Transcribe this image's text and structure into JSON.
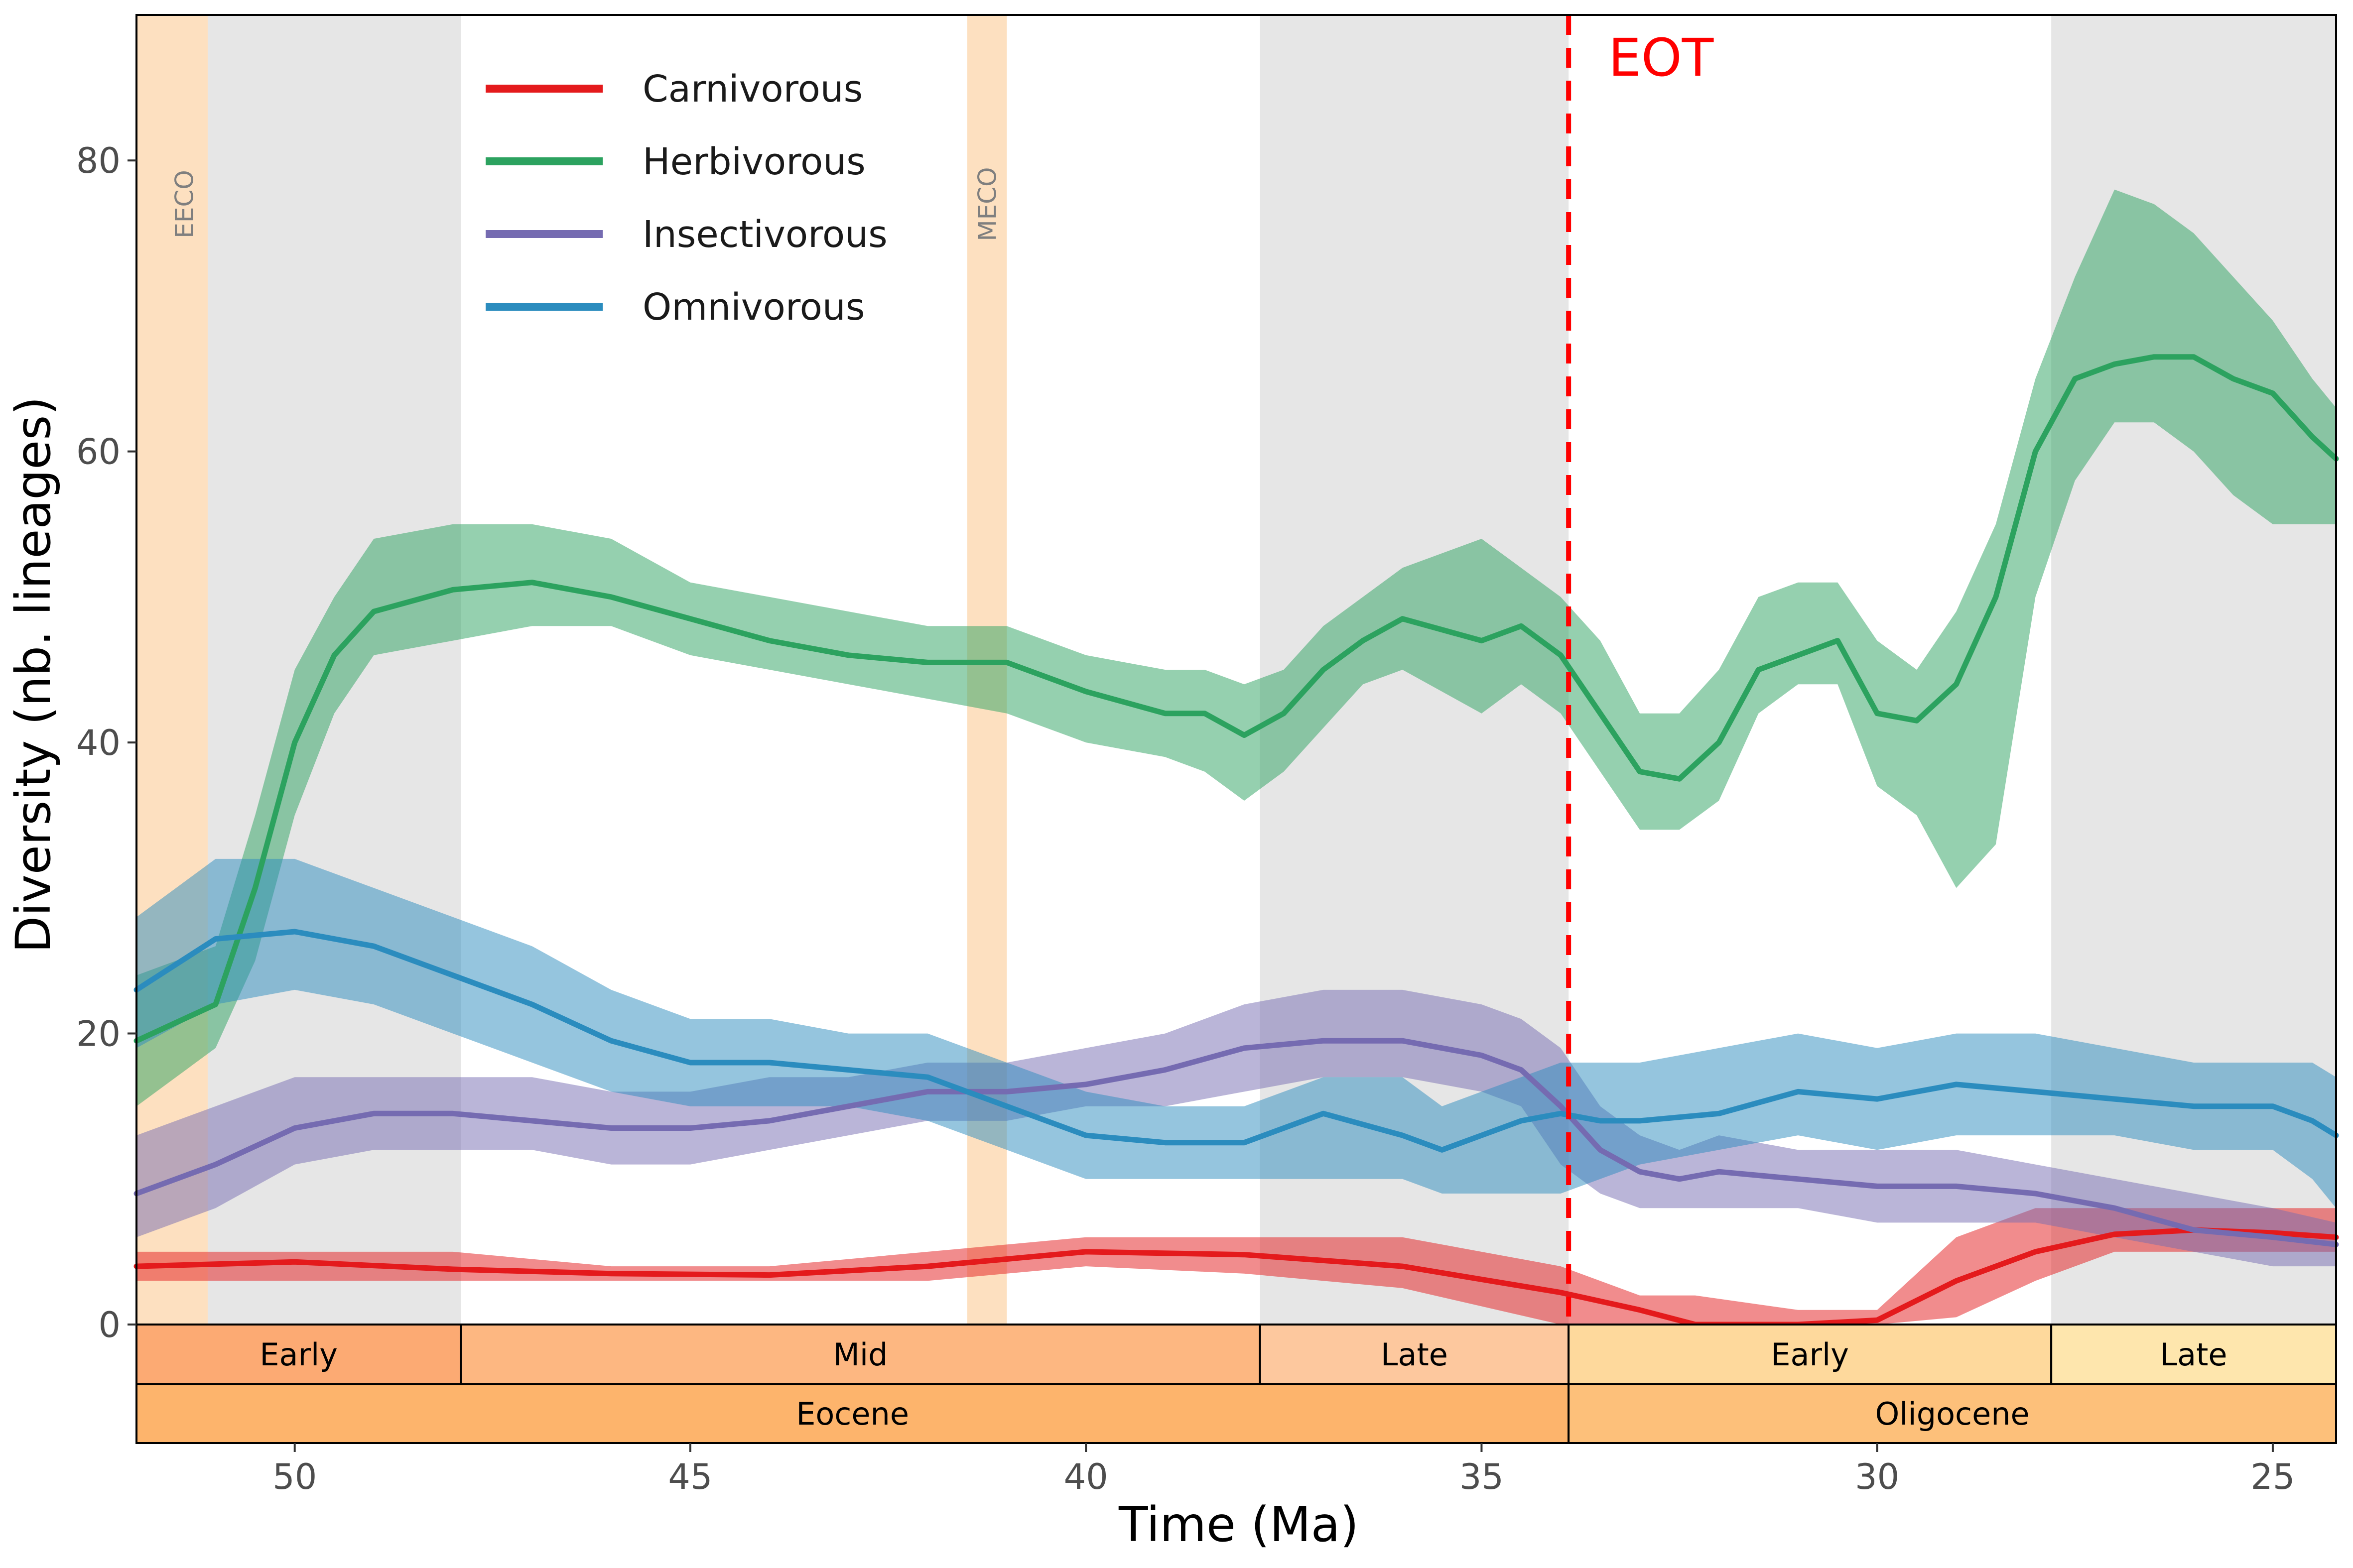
{
  "chart_data": {
    "type": "line",
    "xlabel": "Time (Ma)",
    "ylabel": "Diversity (nb. lineages)",
    "xlim": [
      52,
      24.2
    ],
    "ylim": [
      0,
      90
    ],
    "x_reversed": true,
    "xticks": [
      50,
      45,
      40,
      35,
      30,
      25
    ],
    "yticks": [
      0,
      20,
      40,
      60,
      80
    ],
    "grid": false,
    "legend_position": "top-left",
    "background_bands": [
      {
        "start": 51.1,
        "end": 47.9,
        "color": "#e6e6e6"
      },
      {
        "start": 37.8,
        "end": 33.9,
        "color": "#e6e6e6"
      },
      {
        "start": 27.8,
        "end": 24.2,
        "color": "#e6e6e6"
      }
    ],
    "climate_events": [
      {
        "label": "EECO",
        "start": 52,
        "end": 51.1,
        "color": "#fde0c0",
        "label_x": 51.4
      },
      {
        "label": "MECO",
        "start": 41.5,
        "end": 41.0,
        "color": "#fde0c0",
        "label_x": 41.25
      }
    ],
    "boundary_line": {
      "x": 33.9,
      "label": "EOT",
      "color": "#ff0000"
    },
    "geologic_ages": [
      {
        "label": "Early",
        "start": 52,
        "end": 47.9,
        "color": "#fcaa73"
      },
      {
        "label": "Mid",
        "start": 47.9,
        "end": 37.8,
        "color": "#fdb781"
      },
      {
        "label": "Late",
        "start": 37.8,
        "end": 33.9,
        "color": "#fdc89e"
      },
      {
        "label": "Early",
        "start": 33.9,
        "end": 27.8,
        "color": "#fed99c"
      },
      {
        "label": "Late",
        "start": 27.8,
        "end": 24.2,
        "color": "#fee6ad"
      }
    ],
    "geologic_epochs": [
      {
        "label": "Eocene",
        "start": 52,
        "end": 33.9,
        "color": "#fdb46c"
      },
      {
        "label": "Oligocene",
        "start": 33.9,
        "end": 24.2,
        "color": "#fdc07a"
      }
    ],
    "series": [
      {
        "name": "Carnivorous",
        "color": "#e41a1c",
        "x": [
          52,
          50,
          48,
          46,
          44,
          42,
          40,
          38,
          36,
          34,
          33,
          32.3,
          31,
          30,
          29,
          28,
          27,
          26,
          25,
          24.2
        ],
        "values": [
          4,
          4.3,
          3.8,
          3.5,
          3.4,
          4,
          5,
          4.8,
          4,
          2.2,
          1,
          0,
          0,
          0.3,
          3,
          5,
          6.2,
          6.5,
          6.3,
          6
        ],
        "lower": [
          3,
          3,
          3,
          3,
          3,
          3,
          4,
          3.5,
          2.5,
          0,
          0,
          0,
          0,
          0,
          0.5,
          3,
          5,
          5,
          5,
          5
        ],
        "upper": [
          5,
          5,
          5,
          4,
          4,
          5,
          6,
          6,
          6,
          4,
          2,
          2,
          1,
          1,
          6,
          8,
          8,
          8,
          8,
          8
        ]
      },
      {
        "name": "Herbivorous",
        "color": "#2ca25f",
        "x": [
          52,
          51,
          50.5,
          50,
          49.5,
          49,
          48,
          47,
          46,
          45,
          44,
          43,
          42,
          41,
          40,
          39,
          38.5,
          38,
          37.5,
          37,
          36.5,
          36,
          35,
          34.5,
          34,
          33.5,
          33,
          32.5,
          32,
          31.5,
          31,
          30.5,
          30,
          29.5,
          29,
          28.5,
          28,
          27.5,
          27,
          26.5,
          26,
          25.5,
          25,
          24.5,
          24.2
        ],
        "values": [
          19.5,
          22,
          30,
          40,
          46,
          49,
          50.5,
          51,
          50,
          48.5,
          47,
          46,
          45.5,
          45.5,
          43.5,
          42,
          42,
          40.5,
          42,
          45,
          47,
          48.5,
          47,
          48,
          46,
          42,
          38,
          37.5,
          40,
          45,
          46,
          47,
          42,
          41.5,
          44,
          50,
          60,
          65,
          66,
          66.5,
          66.5,
          65,
          64,
          61,
          59.5
        ],
        "lower": [
          15,
          19,
          25,
          35,
          42,
          46,
          47,
          48,
          48,
          46,
          45,
          44,
          43,
          42,
          40,
          39,
          38,
          36,
          38,
          41,
          44,
          45,
          42,
          44,
          42,
          38,
          34,
          34,
          36,
          42,
          44,
          44,
          37,
          35,
          30,
          33,
          50,
          58,
          62,
          62,
          60,
          57,
          55,
          55,
          55
        ],
        "upper": [
          24,
          26,
          35,
          45,
          50,
          54,
          55,
          55,
          54,
          51,
          50,
          49,
          48,
          48,
          46,
          45,
          45,
          44,
          45,
          48,
          50,
          52,
          54,
          52,
          50,
          47,
          42,
          42,
          45,
          50,
          51,
          51,
          47,
          45,
          49,
          55,
          65,
          72,
          78,
          77,
          75,
          72,
          69,
          65,
          63
        ]
      },
      {
        "name": "Insectivorous",
        "color": "#756bb1",
        "x": [
          52,
          51,
          50,
          49,
          48,
          47,
          46,
          45,
          44,
          43,
          42,
          41,
          40,
          39,
          38,
          37,
          36,
          35,
          34.5,
          34,
          33.5,
          33,
          32.5,
          32,
          31,
          30,
          29,
          28,
          27,
          26,
          25,
          24.2
        ],
        "values": [
          9,
          11,
          13.5,
          14.5,
          14.5,
          14,
          13.5,
          13.5,
          14,
          15,
          16,
          16,
          16.5,
          17.5,
          19,
          19.5,
          19.5,
          18.5,
          17.5,
          15,
          12,
          10.5,
          10,
          10.5,
          10,
          9.5,
          9.5,
          9,
          8,
          6.5,
          6,
          5.5
        ],
        "lower": [
          6,
          8,
          11,
          12,
          12,
          12,
          11,
          11,
          12,
          13,
          14,
          14,
          15,
          15,
          16,
          17,
          17,
          16,
          15,
          11,
          9,
          8,
          8,
          8,
          8,
          7,
          7,
          7,
          6,
          5,
          4,
          4
        ],
        "upper": [
          13,
          15,
          17,
          17,
          17,
          17,
          16,
          16,
          17,
          17,
          18,
          18,
          19,
          20,
          22,
          23,
          23,
          22,
          21,
          19,
          15,
          13,
          12,
          13,
          12,
          12,
          12,
          11,
          10,
          9,
          8,
          7
        ]
      },
      {
        "name": "Omnivorous",
        "color": "#2b8cbe",
        "x": [
          52,
          51,
          50,
          49,
          48,
          47,
          46,
          45,
          44,
          43,
          42,
          41,
          40,
          39,
          38,
          37,
          36,
          35.5,
          35,
          34.5,
          34,
          33.5,
          33,
          32,
          31,
          30,
          29,
          28,
          27,
          26,
          25,
          24.5,
          24.2
        ],
        "values": [
          23,
          26.5,
          27,
          26,
          24,
          22,
          19.5,
          18,
          18,
          17.5,
          17,
          15,
          13,
          12.5,
          12.5,
          14.5,
          13,
          12,
          13,
          14,
          14.5,
          14,
          14,
          14.5,
          16,
          15.5,
          16.5,
          16,
          15.5,
          15,
          15,
          14,
          13
        ],
        "lower": [
          19,
          22,
          23,
          22,
          20,
          18,
          16,
          15,
          15,
          15,
          14,
          12,
          10,
          10,
          10,
          10,
          10,
          9,
          9,
          9,
          9,
          10,
          11,
          12,
          13,
          12,
          13,
          13,
          13,
          12,
          12,
          10,
          8
        ],
        "upper": [
          28,
          32,
          32,
          30,
          28,
          26,
          23,
          21,
          21,
          20,
          20,
          18,
          16,
          15,
          15,
          17,
          17,
          15,
          16,
          17,
          18,
          18,
          18,
          19,
          20,
          19,
          20,
          20,
          19,
          18,
          18,
          18,
          17
        ]
      }
    ]
  }
}
